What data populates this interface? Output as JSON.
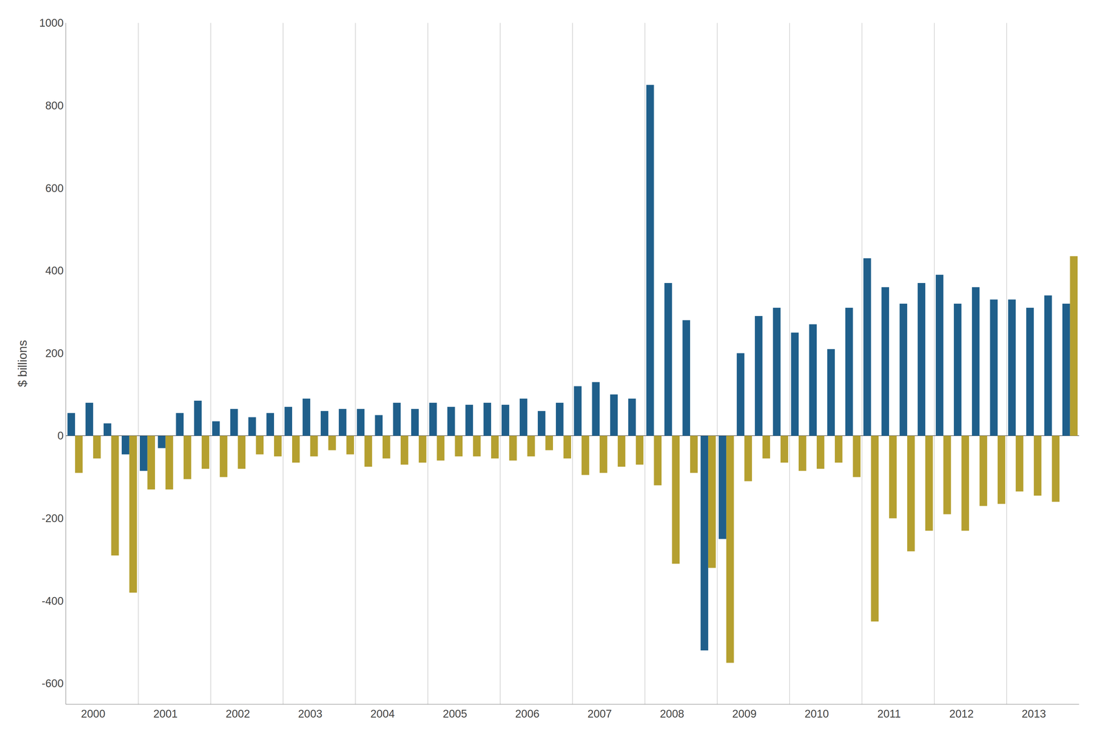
{
  "chart_data": {
    "type": "bar",
    "ylabel": "$ billions",
    "categories": [
      null,
      "2000",
      null,
      null,
      null,
      "2001",
      null,
      null,
      null,
      "2002",
      null,
      null,
      null,
      "2003",
      null,
      null,
      null,
      "2004",
      null,
      null,
      null,
      "2005",
      null,
      null,
      null,
      "2006",
      null,
      null,
      null,
      "2007",
      null,
      null,
      null,
      "2008",
      null,
      null,
      null,
      "2009",
      null,
      null,
      null,
      "2010",
      null,
      null,
      null,
      "2011",
      null,
      null,
      null,
      "2012",
      null,
      null,
      null,
      "2013",
      null,
      null
    ],
    "series": [
      {
        "color": "#1f5f8b",
        "values": [
          55,
          80,
          30,
          -45,
          -85,
          -30,
          55,
          85,
          35,
          65,
          45,
          55,
          70,
          90,
          60,
          65,
          65,
          50,
          80,
          65,
          80,
          70,
          75,
          80,
          75,
          90,
          60,
          80,
          120,
          130,
          100,
          90,
          850,
          370,
          280,
          -520,
          -250,
          200,
          290,
          310,
          250,
          270,
          210,
          310,
          430,
          360,
          320,
          370,
          390,
          320,
          360,
          330,
          330,
          310,
          340,
          320
        ]
      },
      {
        "color": "#b5a030",
        "values": [
          -90,
          -55,
          -290,
          -380,
          -130,
          -130,
          -105,
          -80,
          -100,
          -80,
          -45,
          -50,
          -65,
          -50,
          -35,
          -45,
          -75,
          -55,
          -70,
          -65,
          -60,
          -50,
          -50,
          -55,
          -60,
          -50,
          -35,
          -55,
          -95,
          -90,
          -75,
          -70,
          -120,
          -310,
          -90,
          -320,
          -550,
          -110,
          -55,
          -65,
          -85,
          -80,
          -65,
          -100,
          -450,
          -200,
          -280,
          -230,
          -190,
          -230,
          -170,
          -165,
          -135,
          -145,
          -160,
          435
        ]
      }
    ],
    "ylim": [
      -650,
      1000
    ],
    "yticks": [
      -600,
      -400,
      -200,
      0,
      200,
      400,
      600,
      800,
      1000
    ],
    "grid": true
  }
}
